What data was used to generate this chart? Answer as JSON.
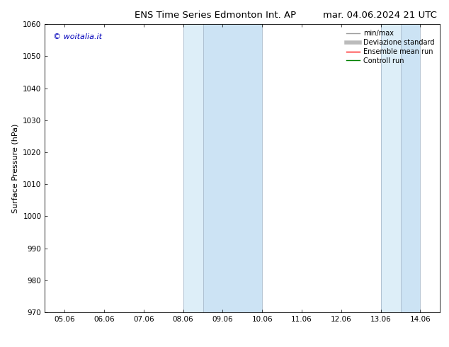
{
  "title_left": "ENS Time Series Edmonton Int. AP",
  "title_right": "mar. 04.06.2024 21 UTC",
  "ylabel": "Surface Pressure (hPa)",
  "ylim": [
    970,
    1060
  ],
  "yticks": [
    970,
    980,
    990,
    1000,
    1010,
    1020,
    1030,
    1040,
    1050,
    1060
  ],
  "xtick_labels": [
    "05.06",
    "06.06",
    "07.06",
    "08.06",
    "09.06",
    "10.06",
    "11.06",
    "12.06",
    "13.06",
    "14.06"
  ],
  "xtick_positions": [
    0,
    1,
    2,
    3,
    4,
    5,
    6,
    7,
    8,
    9
  ],
  "xlim": [
    -0.5,
    9.5
  ],
  "shaded_regions": [
    {
      "x_start": 3.0,
      "x_end": 3.5,
      "color": "#ddeef8"
    },
    {
      "x_start": 3.5,
      "x_end": 5.0,
      "color": "#cce3f4"
    },
    {
      "x_start": 8.0,
      "x_end": 8.5,
      "color": "#ddeef8"
    },
    {
      "x_start": 8.5,
      "x_end": 9.0,
      "color": "#cce3f4"
    }
  ],
  "band_borders": [
    3.0,
    3.5,
    5.0,
    8.0,
    8.5,
    9.0
  ],
  "watermark_text": "© woitalia.it",
  "watermark_color": "#0000bb",
  "legend_items": [
    {
      "label": "min/max",
      "color": "#999999",
      "lw": 1.0
    },
    {
      "label": "Deviazione standard",
      "color": "#bbbbbb",
      "lw": 4.0
    },
    {
      "label": "Ensemble mean run",
      "color": "#ff0000",
      "lw": 1.0
    },
    {
      "label": "Controll run",
      "color": "#008000",
      "lw": 1.0
    }
  ],
  "background_color": "#ffffff",
  "border_color": "#aabbcc",
  "title_fontsize": 9.5,
  "ylabel_fontsize": 8,
  "tick_fontsize": 7.5,
  "legend_fontsize": 7,
  "watermark_fontsize": 8
}
